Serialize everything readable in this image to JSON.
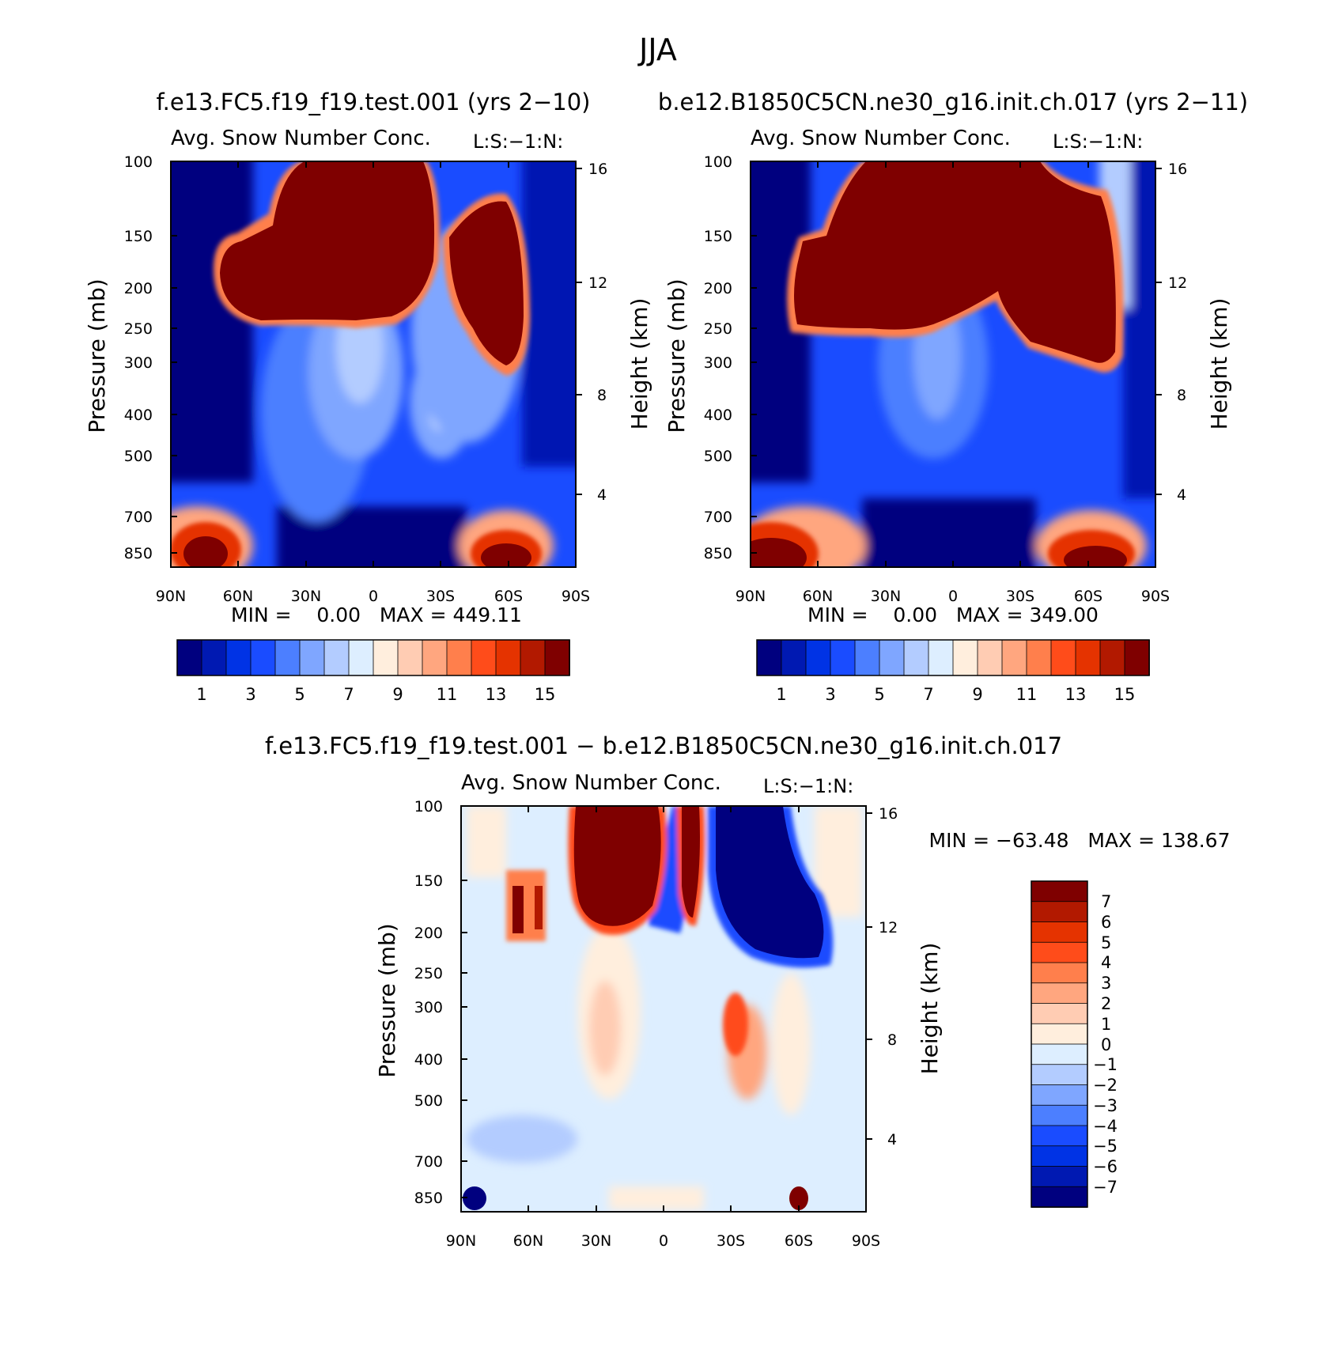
{
  "page": {
    "season": "JJA",
    "diff_title": "f.e13.FC5.f19_f19.test.001 − b.e12.B1850C5CN.ne30_g16.init.ch.017"
  },
  "panels": [
    {
      "id": "case1",
      "case_title": "f.e13.FC5.f19_f19.test.001 (yrs 2−10)",
      "var_title": "Avg. Snow Number Conc.",
      "level_tag": "L:S:−1:N:",
      "stats": "MIN =    0.00   MAX = 449.11"
    },
    {
      "id": "case2",
      "case_title": "b.e12.B1850C5CN.ne30_g16.init.ch.017 (yrs 2−11)",
      "var_title": "Avg. Snow Number Conc.",
      "level_tag": "L:S:−1:N:",
      "stats": "MIN =    0.00   MAX = 349.00"
    },
    {
      "id": "diff",
      "var_title": "Avg. Snow Number Conc.",
      "level_tag": "L:S:−1:N:",
      "stats": "MIN = −63.48   MAX = 138.67"
    }
  ],
  "chart_data": [
    {
      "type": "heatmap",
      "title": "f.e13.FC5.f19_f19.test.001 (yrs 2−10)",
      "subtitle": "Avg. Snow Number Conc.",
      "xlabel": "",
      "ylabel": "Pressure (mb)",
      "ylabel_right": "Height (km)",
      "x_ticks": [
        "90N",
        "60N",
        "30N",
        "0",
        "30S",
        "60S",
        "90S"
      ],
      "y_ticks": [
        100,
        150,
        200,
        250,
        300,
        400,
        500,
        700,
        850
      ],
      "y_scale": "log",
      "y_right_ticks": [
        16,
        12,
        8,
        4
      ],
      "colorbar_labels": [
        "1",
        "3",
        "5",
        "7",
        "9",
        "11",
        "13",
        "15"
      ],
      "min": 0.0,
      "max": 449.11
    },
    {
      "type": "heatmap",
      "title": "b.e12.B1850C5CN.ne30_g16.init.ch.017 (yrs 2−11)",
      "subtitle": "Avg. Snow Number Conc.",
      "xlabel": "",
      "ylabel": "Pressure (mb)",
      "ylabel_right": "Height (km)",
      "x_ticks": [
        "90N",
        "60N",
        "30N",
        "0",
        "30S",
        "60S",
        "90S"
      ],
      "y_ticks": [
        100,
        150,
        200,
        250,
        300,
        400,
        500,
        700,
        850
      ],
      "y_scale": "log",
      "y_right_ticks": [
        16,
        12,
        8,
        4
      ],
      "colorbar_labels": [
        "1",
        "3",
        "5",
        "7",
        "9",
        "11",
        "13",
        "15"
      ],
      "min": 0.0,
      "max": 349.0
    },
    {
      "type": "heatmap",
      "title": "f.e13.FC5.f19_f19.test.001 − b.e12.B1850C5CN.ne30_g16.init.ch.017",
      "subtitle": "Avg. Snow Number Conc.",
      "xlabel": "",
      "ylabel": "Pressure (mb)",
      "ylabel_right": "Height (km)",
      "x_ticks": [
        "90N",
        "60N",
        "30N",
        "0",
        "30S",
        "60S",
        "90S"
      ],
      "y_ticks": [
        100,
        150,
        200,
        250,
        300,
        400,
        500,
        700,
        850
      ],
      "y_scale": "log",
      "y_right_ticks": [
        16,
        12,
        8,
        4
      ],
      "colorbar_labels": [
        "7",
        "6",
        "5",
        "4",
        "3",
        "2",
        "1",
        "0",
        "−1",
        "−2",
        "−3",
        "−4",
        "−5",
        "−6",
        "−7"
      ],
      "min": -63.48,
      "max": 138.67
    }
  ],
  "colors": {
    "seq_scale": [
      "#00007f",
      "#0019b2",
      "#0033e5",
      "#1a4cff",
      "#4c7fff",
      "#7fa6ff",
      "#b3ccff",
      "#ddeeff",
      "#ffeedd",
      "#ffccb3",
      "#ffa67f",
      "#ff7f4c",
      "#ff4c1a",
      "#e53300",
      "#b21900",
      "#7f0000"
    ],
    "div_scale": [
      "#7f0000",
      "#b21900",
      "#e53300",
      "#ff4c1a",
      "#ff7f4c",
      "#ffa67f",
      "#ffccb3",
      "#ffeedd",
      "#ddeeff",
      "#b3ccff",
      "#7fa6ff",
      "#4c7fff",
      "#1a4cff",
      "#0033e5",
      "#0019b2",
      "#00007f"
    ]
  }
}
